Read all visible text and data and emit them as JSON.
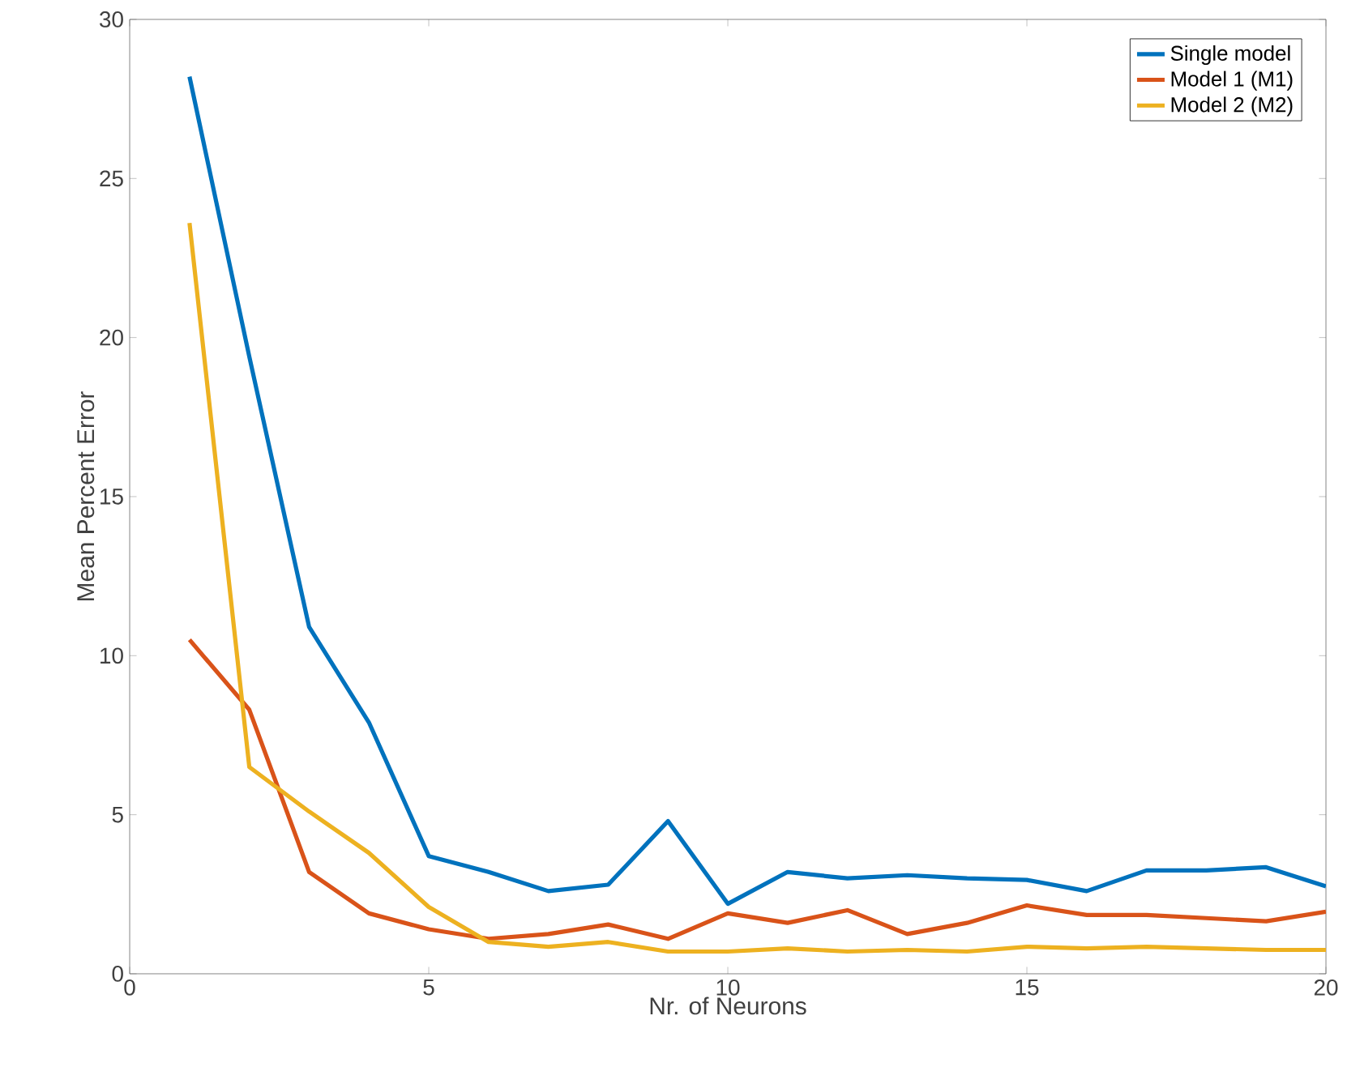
{
  "chart_data": {
    "type": "line",
    "xlabel": "Nr. of Neurons",
    "ylabel": "Mean Percent Error",
    "x": [
      1,
      2,
      3,
      4,
      5,
      6,
      7,
      8,
      9,
      10,
      11,
      12,
      13,
      14,
      15,
      16,
      17,
      18,
      19,
      20
    ],
    "xlim": [
      0,
      20
    ],
    "xticks": [
      0,
      5,
      10,
      15,
      20
    ],
    "ylim": [
      0,
      30
    ],
    "yticks": [
      0,
      5,
      10,
      15,
      20,
      25,
      30
    ],
    "grid": false,
    "legend": "top right",
    "marker": "none",
    "line_style": "solid",
    "series": [
      {
        "name": "Single model",
        "color": "#0072bd",
        "values": [
          28.2,
          19.4,
          10.9,
          7.9,
          3.7,
          3.2,
          2.6,
          2.8,
          4.8,
          2.2,
          3.2,
          3.0,
          3.1,
          3.0,
          2.95,
          2.6,
          3.25,
          3.25,
          3.35,
          2.75
        ]
      },
      {
        "name": "Model 1 (M1)",
        "color": "#d95319",
        "values": [
          10.5,
          8.3,
          3.2,
          1.9,
          1.4,
          1.1,
          1.25,
          1.55,
          1.1,
          1.9,
          1.6,
          2.0,
          1.25,
          1.6,
          2.15,
          1.85,
          1.85,
          1.75,
          1.65,
          1.95
        ]
      },
      {
        "name": "Model 2 (M2)",
        "color": "#edb120",
        "values": [
          23.6,
          6.5,
          5.1,
          3.8,
          2.1,
          1.0,
          0.85,
          1.0,
          0.7,
          0.7,
          0.8,
          0.7,
          0.75,
          0.7,
          0.85,
          0.8,
          0.85,
          0.8,
          0.75,
          0.75
        ]
      }
    ]
  }
}
